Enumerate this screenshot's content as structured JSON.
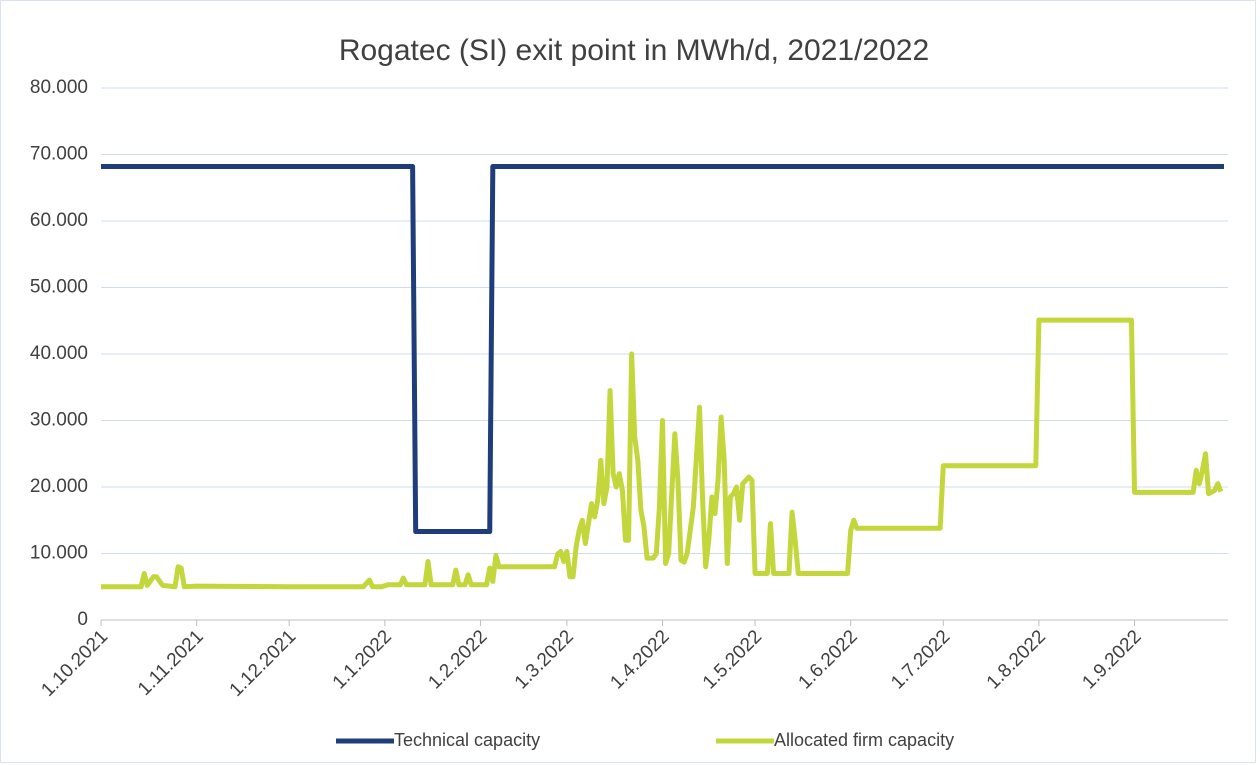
{
  "chart_data": {
    "type": "line",
    "title": "Rogatec (SI) exit point in MWh/d, 2021/2022",
    "series": [
      {
        "name": "Technical capacity",
        "color": "#1f3d7a",
        "x": [
          "1.10.2021",
          "10.1.2022",
          "11.1.2022",
          "4.2.2022",
          "5.2.2022",
          "30.9.2022"
        ],
        "values": [
          68200,
          68200,
          13300,
          13300,
          68200,
          68200
        ]
      },
      {
        "name": "Allocated firm capacity",
        "color": "#c3d63b",
        "x": [
          "1.10.2021",
          "14.10.2021",
          "15.10.2021",
          "16.10.2021",
          "18.10.2021",
          "19.10.2021",
          "21.10.2021",
          "25.10.2021",
          "26.10.2021",
          "27.10.2021",
          "28.10.2021",
          "1.11.2021",
          "1.12.2021",
          "25.12.2021",
          "27.12.2021",
          "28.12.2021",
          "31.12.2021",
          "2.1.2022",
          "6.1.2022",
          "7.1.2022",
          "8.1.2022",
          "14.1.2022",
          "15.1.2022",
          "16.1.2022",
          "23.1.2022",
          "24.1.2022",
          "25.1.2022",
          "27.1.2022",
          "28.1.2022",
          "29.1.2022",
          "3.2.2022",
          "4.2.2022",
          "5.2.2022",
          "6.2.2022",
          "7.2.2022",
          "25.2.2022",
          "26.2.2022",
          "27.2.2022",
          "28.2.2022",
          "1.3.2022",
          "2.3.2022",
          "3.3.2022",
          "4.3.2022",
          "5.3.2022",
          "6.3.2022",
          "7.3.2022",
          "9.3.2022",
          "10.3.2022",
          "11.3.2022",
          "12.3.2022",
          "13.3.2022",
          "14.3.2022",
          "15.3.2022",
          "16.3.2022",
          "17.3.2022",
          "18.3.2022",
          "19.3.2022",
          "20.3.2022",
          "21.3.2022",
          "22.3.2022",
          "23.3.2022",
          "24.3.2022",
          "25.3.2022",
          "26.3.2022",
          "27.3.2022",
          "29.3.2022",
          "30.3.2022",
          "31.3.2022",
          "1.4.2022",
          "2.4.2022",
          "3.4.2022",
          "5.4.2022",
          "6.4.2022",
          "7.4.2022",
          "8.4.2022",
          "9.4.2022",
          "11.4.2022",
          "13.4.2022",
          "14.4.2022",
          "15.4.2022",
          "16.4.2022",
          "17.4.2022",
          "18.4.2022",
          "19.4.2022",
          "20.4.2022",
          "21.4.2022",
          "22.4.2022",
          "23.4.2022",
          "24.4.2022",
          "25.4.2022",
          "26.4.2022",
          "27.4.2022",
          "29.4.2022",
          "30.4.2022",
          "1.5.2022",
          "5.5.2022",
          "6.5.2022",
          "7.5.2022",
          "12.5.2022",
          "13.5.2022",
          "14.5.2022",
          "15.5.2022",
          "31.5.2022",
          "1.6.2022",
          "2.6.2022",
          "3.6.2022",
          "30.6.2022",
          "1.7.2022",
          "31.7.2022",
          "1.8.2022",
          "31.8.2022",
          "1.9.2022",
          "20.9.2022",
          "21.9.2022",
          "22.9.2022",
          "23.9.2022",
          "24.9.2022",
          "25.9.2022",
          "27.9.2022",
          "28.9.2022",
          "29.9.2022"
        ],
        "values": [
          5000,
          5000,
          7000,
          5200,
          6500,
          6500,
          5200,
          5000,
          8000,
          7800,
          5000,
          5100,
          5000,
          5000,
          6000,
          5000,
          5000,
          5300,
          5300,
          6300,
          5300,
          5300,
          8800,
          5300,
          5300,
          7500,
          5300,
          5300,
          6800,
          5300,
          5300,
          7800,
          5800,
          9700,
          8000,
          8000,
          9900,
          10300,
          8800,
          10300,
          6500,
          6500,
          11000,
          13500,
          15000,
          11500,
          17500,
          15500,
          18000,
          24000,
          17500,
          20000,
          34500,
          22000,
          20000,
          22000,
          19500,
          12000,
          12000,
          40000,
          27500,
          24000,
          16500,
          14000,
          9300,
          9300,
          10000,
          17000,
          30000,
          8500,
          10000,
          28000,
          21000,
          9000,
          8700,
          10000,
          17000,
          32000,
          18000,
          8000,
          12000,
          18500,
          16000,
          21000,
          30500,
          24000,
          8500,
          18500,
          19000,
          20000,
          15000,
          20500,
          21500,
          21000,
          7000,
          7000,
          14500,
          7000,
          7000,
          16200,
          12000,
          7000,
          7000,
          13500,
          15000,
          13800,
          13800,
          23200,
          23200,
          45100,
          45100,
          19200,
          19200,
          22500,
          20500,
          22500,
          25000,
          19000,
          19500,
          20500,
          19300
        ]
      }
    ],
    "xlim": [
      "1.10.2021",
      "30.9.2022"
    ],
    "xticks": [
      "1.10.2021",
      "1.11.2021",
      "1.12.2021",
      "1.1.2022",
      "1.2.2022",
      "1.3.2022",
      "1.4.2022",
      "1.5.2022",
      "1.6.2022",
      "1.7.2022",
      "1.8.2022",
      "1.9.2022"
    ],
    "ylim": [
      0,
      80000
    ],
    "yticks": [
      0,
      {
        "value": 10000,
        "label": "10.000"
      },
      {
        "value": 20000,
        "label": "20.000"
      },
      {
        "value": 30000,
        "label": "30.000"
      },
      {
        "value": 40000,
        "label": "40.000"
      },
      {
        "value": 50000,
        "label": "50.000"
      },
      {
        "value": 60000,
        "label": "60.000"
      },
      {
        "value": 70000,
        "label": "70.000"
      },
      {
        "value": 80000,
        "label": "80.000"
      }
    ],
    "grid": true,
    "legend": "bottom"
  }
}
